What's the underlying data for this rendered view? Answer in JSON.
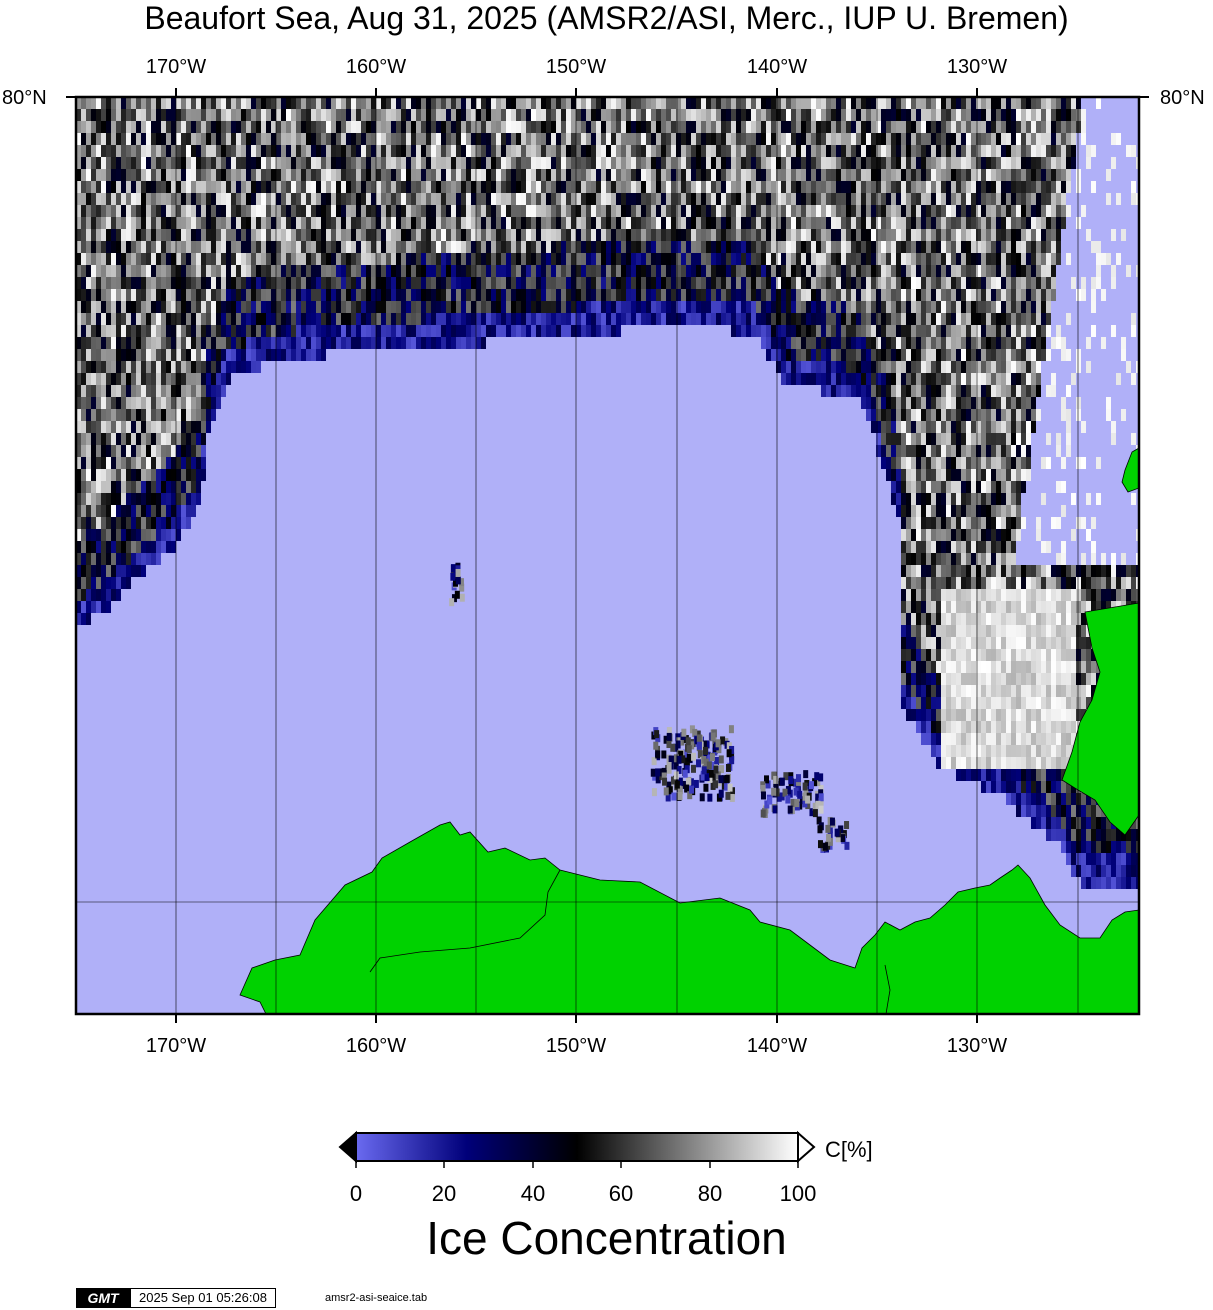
{
  "title": "Beaufort Sea, Aug 31, 2025 (AMSR2/ASI, Merc., IUP U. Bremen)",
  "map": {
    "projection": "Mercator",
    "lon_range": [
      -175,
      -122
    ],
    "lat_label": "80°N",
    "lon_labels": [
      "170°W",
      "160°W",
      "150°W",
      "140°W",
      "130°W"
    ],
    "colors": {
      "open_water": "#b0b0f8",
      "land": "#00d200",
      "ice_low": "#00007a",
      "ice_high": "#ffffff",
      "graticule": "#000000"
    }
  },
  "colorbar": {
    "label": "C[%]",
    "ticks": [
      "0",
      "20",
      "40",
      "60",
      "80",
      "100"
    ],
    "range": [
      0,
      100
    ],
    "stops": [
      {
        "value": 0,
        "color": "#6a6af0"
      },
      {
        "value": 25,
        "color": "#00007a"
      },
      {
        "value": 50,
        "color": "#000000"
      },
      {
        "value": 100,
        "color": "#ffffff"
      }
    ],
    "title": "Ice Concentration"
  },
  "footer": {
    "logo": "GMT",
    "timestamp": "2025 Sep 01 05:26:08",
    "filename": "amsr2-asi-seaice.tab"
  }
}
